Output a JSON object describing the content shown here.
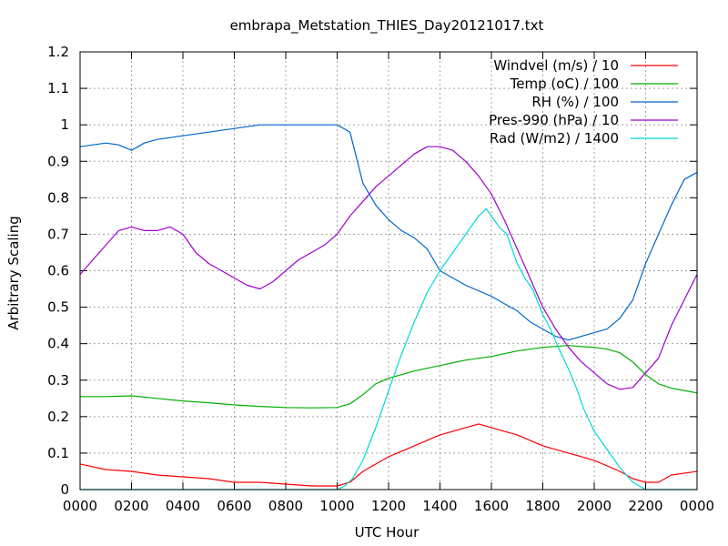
{
  "chart_data": {
    "type": "line",
    "title": "embrapa_Metstation_THIES_Day20121017.txt",
    "xlabel": "UTC Hour",
    "ylabel": "Arbitrary Scaling",
    "xlim": [
      0,
      24
    ],
    "ylim": [
      0,
      1.2
    ],
    "x_tick_labels": [
      "0000",
      "0200",
      "0400",
      "0600",
      "0800",
      "1000",
      "1200",
      "1400",
      "1600",
      "1800",
      "2000",
      "2200",
      "0000"
    ],
    "y_tick_labels": [
      "0",
      "0.1",
      "0.2",
      "0.3",
      "0.4",
      "0.5",
      "0.6",
      "0.7",
      "0.8",
      "0.9",
      "1",
      "1.1",
      "1.2"
    ],
    "grid": true,
    "legend_position": "top-right",
    "series": [
      {
        "name": "Windvel (m/s) / 10",
        "color": "#ff0000",
        "x": [
          0,
          1,
          2,
          3,
          4,
          5,
          6,
          7,
          8,
          9,
          10,
          10.5,
          11,
          12,
          13,
          14,
          15,
          15.5,
          16,
          17,
          18,
          19,
          20,
          21,
          21.5,
          22,
          22.5,
          23,
          24
        ],
        "y": [
          0.07,
          0.055,
          0.05,
          0.04,
          0.035,
          0.03,
          0.02,
          0.02,
          0.015,
          0.01,
          0.01,
          0.02,
          0.05,
          0.09,
          0.12,
          0.15,
          0.17,
          0.18,
          0.17,
          0.15,
          0.12,
          0.1,
          0.08,
          0.05,
          0.03,
          0.02,
          0.02,
          0.04,
          0.05
        ]
      },
      {
        "name": "Temp (oC) / 100",
        "color": "#00b000",
        "x": [
          0,
          1,
          2,
          3,
          4,
          5,
          6,
          7,
          8,
          9,
          10,
          10.5,
          11,
          11.5,
          12,
          13,
          14,
          15,
          16,
          17,
          18,
          19,
          19.5,
          20,
          20.5,
          21,
          21.5,
          22,
          22.5,
          23,
          24
        ],
        "y": [
          0.255,
          0.255,
          0.257,
          0.25,
          0.243,
          0.238,
          0.232,
          0.228,
          0.225,
          0.224,
          0.225,
          0.235,
          0.26,
          0.29,
          0.305,
          0.325,
          0.34,
          0.355,
          0.365,
          0.38,
          0.39,
          0.395,
          0.392,
          0.39,
          0.385,
          0.375,
          0.35,
          0.315,
          0.29,
          0.278,
          0.265
        ]
      },
      {
        "name": "RH (%) / 100",
        "color": "#0066cc",
        "x": [
          0,
          0.5,
          1,
          1.5,
          2,
          2.5,
          3,
          3.5,
          4,
          5,
          6,
          7,
          8,
          9,
          10,
          10.5,
          11,
          11.5,
          12,
          12.5,
          13,
          13.5,
          14,
          15,
          16,
          16.5,
          17,
          17.5,
          18,
          18.5,
          19,
          19.5,
          20,
          20.5,
          21,
          21.5,
          22,
          22.5,
          23,
          23.5,
          24
        ],
        "y": [
          0.94,
          0.945,
          0.95,
          0.945,
          0.93,
          0.95,
          0.96,
          0.965,
          0.97,
          0.98,
          0.99,
          1.0,
          1.0,
          1.0,
          1.0,
          0.98,
          0.84,
          0.78,
          0.74,
          0.71,
          0.69,
          0.66,
          0.6,
          0.56,
          0.53,
          0.51,
          0.49,
          0.46,
          0.44,
          0.42,
          0.41,
          0.42,
          0.43,
          0.44,
          0.47,
          0.52,
          0.62,
          0.7,
          0.78,
          0.85,
          0.87
        ]
      },
      {
        "name": "Pres-990 (hPa) / 10",
        "color": "#a000d0",
        "x": [
          0,
          0.5,
          1,
          1.5,
          2,
          2.5,
          3,
          3.5,
          4,
          4.5,
          5,
          5.5,
          6,
          6.5,
          7,
          7.5,
          8,
          8.5,
          9,
          9.5,
          10,
          10.5,
          11,
          11.5,
          12,
          12.5,
          13,
          13.5,
          14,
          14.5,
          15,
          15.5,
          16,
          16.5,
          17,
          17.5,
          18,
          18.5,
          19,
          19.5,
          20,
          20.5,
          21,
          21.5,
          22,
          22.5,
          23,
          23.5,
          24
        ],
        "y": [
          0.59,
          0.63,
          0.67,
          0.71,
          0.72,
          0.71,
          0.71,
          0.72,
          0.7,
          0.65,
          0.62,
          0.6,
          0.58,
          0.56,
          0.55,
          0.57,
          0.6,
          0.63,
          0.65,
          0.67,
          0.7,
          0.75,
          0.79,
          0.83,
          0.86,
          0.89,
          0.92,
          0.94,
          0.94,
          0.93,
          0.9,
          0.86,
          0.81,
          0.74,
          0.66,
          0.58,
          0.5,
          0.44,
          0.39,
          0.35,
          0.32,
          0.29,
          0.275,
          0.28,
          0.32,
          0.36,
          0.45,
          0.52,
          0.59
        ]
      },
      {
        "name": "Rad (W/m2) / 1400",
        "color": "#00d8d8",
        "x": [
          0,
          10,
          10.3,
          10.6,
          11,
          11.5,
          12,
          12.5,
          13,
          13.5,
          14,
          14.5,
          15,
          15.5,
          15.8,
          16,
          16.3,
          16.6,
          17,
          17.3,
          17.6,
          18,
          18.3,
          18.6,
          19,
          19.3,
          19.6,
          20,
          20.5,
          21,
          21.5,
          22,
          22.5,
          24
        ],
        "y": [
          0,
          0,
          0.01,
          0.03,
          0.08,
          0.17,
          0.27,
          0.37,
          0.46,
          0.54,
          0.6,
          0.65,
          0.7,
          0.75,
          0.77,
          0.75,
          0.72,
          0.7,
          0.62,
          0.58,
          0.55,
          0.48,
          0.44,
          0.39,
          0.33,
          0.28,
          0.22,
          0.16,
          0.11,
          0.06,
          0.02,
          0,
          0,
          0
        ]
      }
    ]
  }
}
